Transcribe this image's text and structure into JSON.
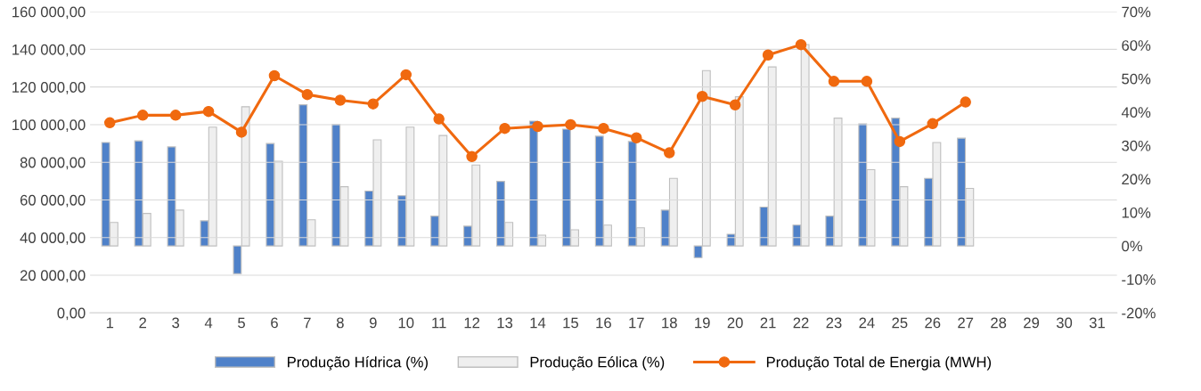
{
  "chart_data": {
    "type": "bar",
    "categories": [
      "1",
      "2",
      "3",
      "4",
      "5",
      "6",
      "7",
      "8",
      "9",
      "10",
      "11",
      "12",
      "13",
      "14",
      "15",
      "16",
      "17",
      "18",
      "19",
      "20",
      "21",
      "22",
      "23",
      "24",
      "25",
      "26",
      "27",
      "28",
      "29",
      "30",
      "31"
    ],
    "series": [
      {
        "name": "Produção Hídrica (%)",
        "axis": "y2",
        "color": "#4f81c9",
        "values": [
          30.9,
          31.4,
          29.6,
          7.5,
          -8.3,
          30.6,
          42.2,
          36.3,
          16.4,
          15.0,
          8.9,
          5.9,
          19.3,
          37.3,
          34.9,
          32.8,
          31.2,
          10.7,
          -3.5,
          3.5,
          11.6,
          6.2,
          8.9,
          36.5,
          38.2,
          20.2,
          32.2,
          null,
          null,
          null,
          null
        ]
      },
      {
        "name": "Produção Eólica (%)",
        "axis": "y2",
        "color": "#efefef",
        "values": [
          7.0,
          9.7,
          10.7,
          35.5,
          41.6,
          25.3,
          7.8,
          17.7,
          31.7,
          35.5,
          33.0,
          24.2,
          7.0,
          3.2,
          4.8,
          6.2,
          5.4,
          20.2,
          52.4,
          44.6,
          53.5,
          60.2,
          38.2,
          22.8,
          17.7,
          30.9,
          17.2,
          null,
          null,
          null,
          null
        ]
      },
      {
        "name": "Produção Total de Energia (MWH)",
        "type": "line",
        "axis": "y",
        "color": "#f0690f",
        "marker": "circle",
        "values": [
          101000,
          105000,
          105000,
          107000,
          96000,
          126000,
          116000,
          113000,
          111000,
          126500,
          103000,
          83000,
          98000,
          99000,
          100000,
          98000,
          93000,
          85000,
          115000,
          110500,
          137000,
          142500,
          123000,
          123000,
          91000,
          100500,
          112000,
          null,
          null,
          null,
          null
        ]
      }
    ],
    "ylim": [
      0,
      160000
    ],
    "yticks": [
      {
        "value": 0,
        "label": "0,00"
      },
      {
        "value": 20000,
        "label": "20 000,00"
      },
      {
        "value": 40000,
        "label": "40 000,00"
      },
      {
        "value": 60000,
        "label": "60 000,00"
      },
      {
        "value": 80000,
        "label": "80 000,00"
      },
      {
        "value": 100000,
        "label": "100 000,00"
      },
      {
        "value": 120000,
        "label": "120 000,00"
      },
      {
        "value": 140000,
        "label": "140 000,00"
      },
      {
        "value": 160000,
        "label": "160 000,00"
      }
    ],
    "y2lim": [
      -20,
      70
    ],
    "y2ticks": [
      {
        "value": -20,
        "label": "-20%"
      },
      {
        "value": -10,
        "label": "-10%"
      },
      {
        "value": 0,
        "label": "0%"
      },
      {
        "value": 10,
        "label": "10%"
      },
      {
        "value": 20,
        "label": "20%"
      },
      {
        "value": 30,
        "label": "30%"
      },
      {
        "value": 40,
        "label": "40%"
      },
      {
        "value": 50,
        "label": "50%"
      },
      {
        "value": 60,
        "label": "60%"
      },
      {
        "value": 70,
        "label": "70%"
      }
    ],
    "grid": "y",
    "legend": "bottom"
  }
}
